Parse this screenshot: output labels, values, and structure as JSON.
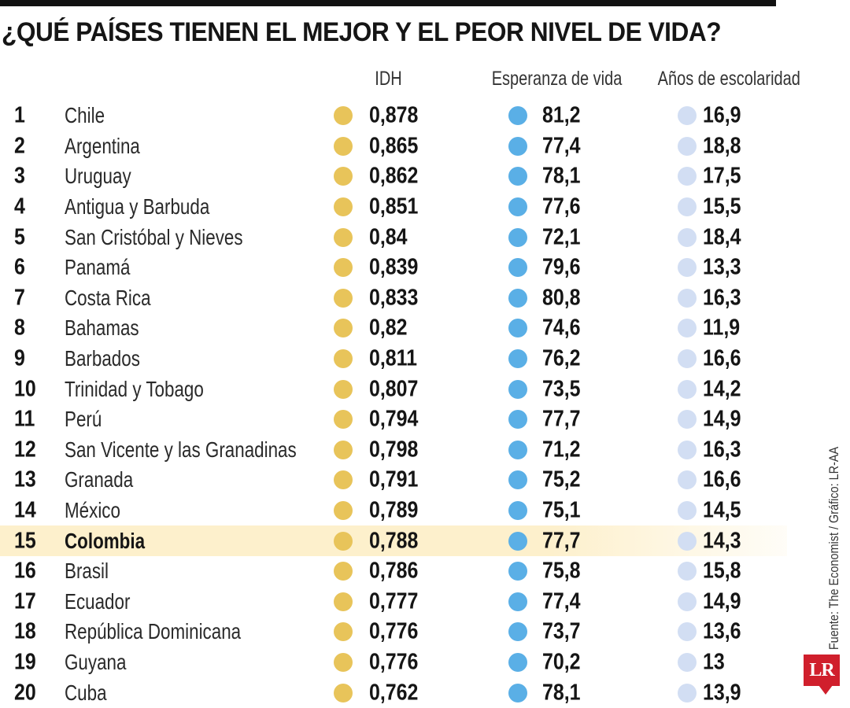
{
  "title": "¿QUÉ PAÍSES TIENEN EL MEJOR Y EL PEOR NIVEL DE VIDA?",
  "source": "Fuente: The Economist / Gráfico: LR-AA",
  "logo": "LR",
  "colors": {
    "idh_dot": "#e8c45a",
    "life_dot": "#5aafe6",
    "school_dot": "#d2def3",
    "highlight_row": "#fdf0cc"
  },
  "chart_data": {
    "type": "table",
    "columns": [
      "IDH",
      "Esperanza de vida",
      "Años de escolaridad"
    ],
    "highlight_rank": 15,
    "rows": [
      {
        "rank": "1",
        "country": "Chile",
        "idh": "0,878",
        "life": "81,2",
        "school": "16,9"
      },
      {
        "rank": "2",
        "country": "Argentina",
        "idh": "0,865",
        "life": "77,4",
        "school": "18,8"
      },
      {
        "rank": "3",
        "country": "Uruguay",
        "idh": "0,862",
        "life": "78,1",
        "school": "17,5"
      },
      {
        "rank": "4",
        "country": "Antigua y Barbuda",
        "idh": "0,851",
        "life": "77,6",
        "school": "15,5"
      },
      {
        "rank": "5",
        "country": "San Cristóbal y Nieves",
        "idh": "0,84",
        "life": "72,1",
        "school": "18,4"
      },
      {
        "rank": "6",
        "country": "Panamá",
        "idh": "0,839",
        "life": "79,6",
        "school": "13,3"
      },
      {
        "rank": "7",
        "country": "Costa Rica",
        "idh": "0,833",
        "life": "80,8",
        "school": "16,3"
      },
      {
        "rank": "8",
        "country": "Bahamas",
        "idh": "0,82",
        "life": "74,6",
        "school": "11,9"
      },
      {
        "rank": "9",
        "country": "Barbados",
        "idh": "0,811",
        "life": "76,2",
        "school": "16,6"
      },
      {
        "rank": "10",
        "country": "Trinidad y Tobago",
        "idh": "0,807",
        "life": "73,5",
        "school": "14,2"
      },
      {
        "rank": "11",
        "country": "Perú",
        "idh": "0,794",
        "life": "77,7",
        "school": "14,9"
      },
      {
        "rank": "12",
        "country": "San Vicente y las Granadinas",
        "idh": "0,798",
        "life": "71,2",
        "school": "16,3"
      },
      {
        "rank": "13",
        "country": "Granada",
        "idh": "0,791",
        "life": "75,2",
        "school": "16,6"
      },
      {
        "rank": "14",
        "country": "México",
        "idh": "0,789",
        "life": "75,1",
        "school": "14,5"
      },
      {
        "rank": "15",
        "country": "Colombia",
        "idh": "0,788",
        "life": "77,7",
        "school": "14,3"
      },
      {
        "rank": "16",
        "country": "Brasil",
        "idh": "0,786",
        "life": "75,8",
        "school": "15,8"
      },
      {
        "rank": "17",
        "country": "Ecuador",
        "idh": "0,777",
        "life": "77,4",
        "school": "14,9"
      },
      {
        "rank": "18",
        "country": "República Dominicana",
        "idh": "0,776",
        "life": "73,7",
        "school": "13,6"
      },
      {
        "rank": "19",
        "country": "Guyana",
        "idh": "0,776",
        "life": "70,2",
        "school": "13"
      },
      {
        "rank": "20",
        "country": "Cuba",
        "idh": "0,762",
        "life": "78,1",
        "school": "13,9"
      }
    ]
  }
}
